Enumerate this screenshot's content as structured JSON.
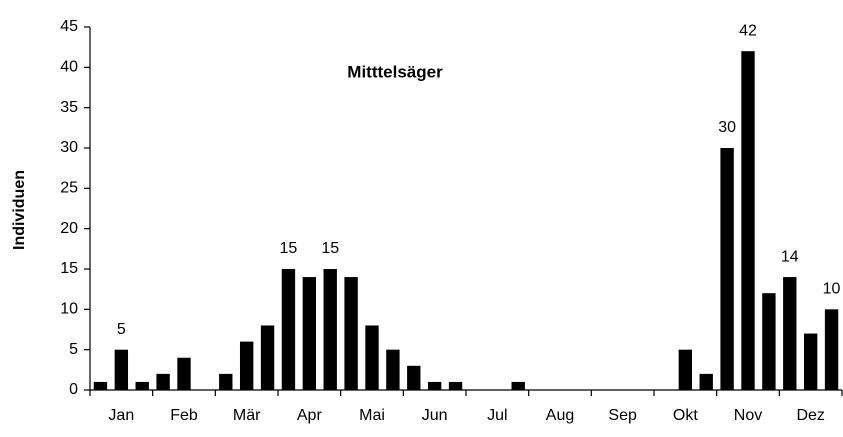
{
  "chart_data": {
    "type": "bar",
    "title": "Mitttelsäger",
    "y_label": "Individuen",
    "categories": [
      null,
      "Jan",
      null,
      null,
      "Feb",
      null,
      null,
      "Mär",
      null,
      null,
      "Apr",
      null,
      null,
      "Mai",
      null,
      null,
      "Jun",
      null,
      null,
      "Jul",
      null,
      null,
      "Aug",
      null,
      null,
      "Sep",
      null,
      null,
      "Okt",
      null,
      null,
      "Nov",
      null,
      null,
      "Dez",
      null
    ],
    "values": [
      1,
      5,
      1,
      2,
      4,
      0,
      2,
      6,
      8,
      15,
      14,
      15,
      14,
      8,
      5,
      3,
      1,
      1,
      0,
      0,
      1,
      0,
      0,
      0,
      0,
      0,
      0,
      0,
      5,
      2,
      30,
      42,
      12,
      14,
      7,
      10
    ],
    "value_labels": [
      null,
      "5",
      null,
      null,
      null,
      null,
      null,
      null,
      null,
      "15",
      null,
      "15",
      null,
      null,
      null,
      null,
      null,
      null,
      null,
      null,
      null,
      null,
      null,
      null,
      null,
      null,
      null,
      null,
      null,
      null,
      "30",
      "42",
      null,
      "14",
      null,
      "10"
    ],
    "color": "#000000",
    "ylim": [
      0,
      45
    ],
    "yticks": [
      0,
      5,
      10,
      15,
      20,
      25,
      30,
      35,
      40,
      45
    ],
    "grid": false
  }
}
